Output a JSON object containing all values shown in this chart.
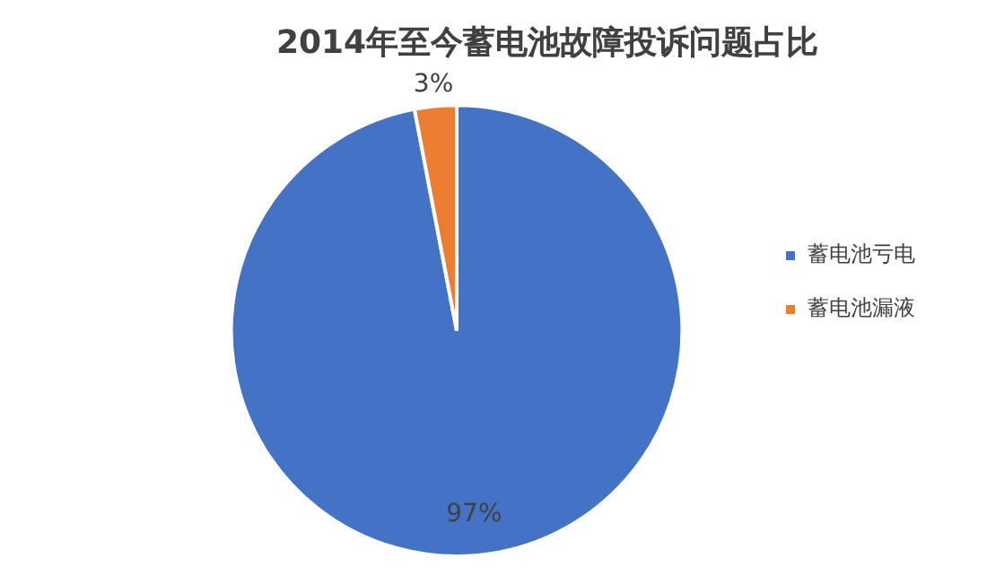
{
  "chart_data": {
    "type": "pie",
    "title": "2014年至今蓄电池故障投诉问题占比",
    "categories": [
      "蓄电池亏电",
      "蓄电池漏液"
    ],
    "values": [
      97,
      3
    ],
    "colors": [
      "#4472c4",
      "#ed7d31"
    ],
    "value_labels": [
      "97%",
      "3%"
    ],
    "legend": "right"
  }
}
